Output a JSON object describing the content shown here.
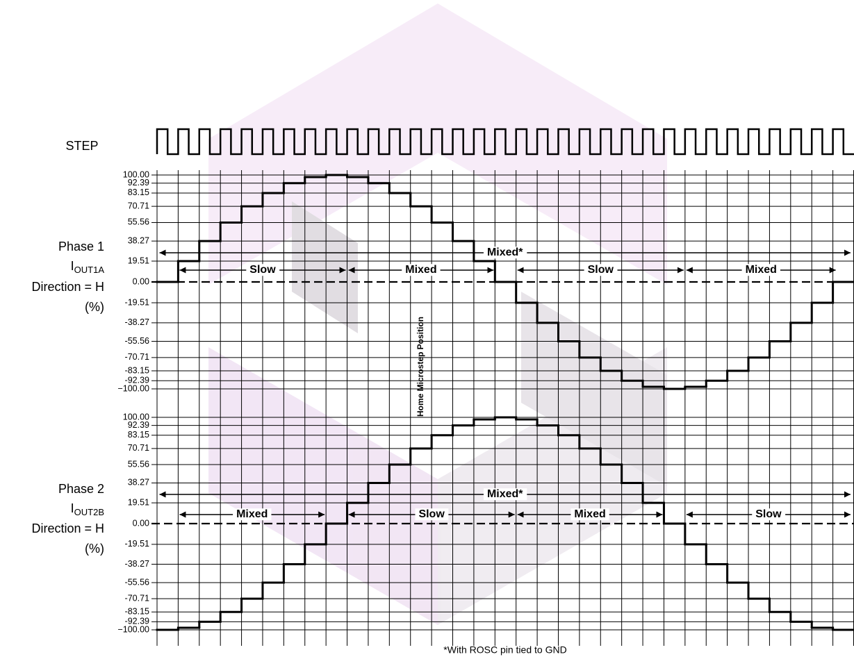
{
  "step_label": "STEP",
  "home_label": "Home Microstep Position",
  "footnote": "*With ROSC pin tied to GND",
  "panels": [
    {
      "phase": "Phase 1",
      "current": "I",
      "current_sub": "OUT1A",
      "direction": "Direction = H",
      "unit": "(%)",
      "ylim": [
        -100,
        100
      ],
      "yticks": [
        {
          "value": 100,
          "label": "100.00"
        },
        92.39,
        83.15,
        70.71,
        55.56,
        38.27,
        19.51,
        {
          "value": 0,
          "label": "0.00"
        },
        -19.51,
        -38.27,
        -55.56,
        -70.71,
        -83.15,
        -92.39,
        {
          "value": -100,
          "label": "−100.00"
        }
      ],
      "values": [
        0,
        19.51,
        38.27,
        55.56,
        70.71,
        83.15,
        92.39,
        98.08,
        100,
        98.08,
        92.39,
        83.15,
        70.71,
        55.56,
        38.27,
        19.51,
        0,
        -19.51,
        -38.27,
        -55.56,
        -70.71,
        -83.15,
        -92.39,
        -98.08,
        -100,
        -98.08,
        -92.39,
        -83.15,
        -70.71,
        -55.56,
        -38.27,
        -19.51,
        0
      ],
      "annotations": [
        "Mixed*",
        "Slow",
        "Mixed",
        "Slow",
        "Mixed"
      ]
    },
    {
      "phase": "Phase 2",
      "current": "I",
      "current_sub": "OUT2B",
      "direction": "Direction = H",
      "unit": "(%)",
      "ylim": [
        -100,
        100
      ],
      "yticks": [
        {
          "value": 100,
          "label": "100.00"
        },
        92.39,
        83.15,
        70.71,
        55.56,
        38.27,
        19.51,
        {
          "value": 0,
          "label": "0.00"
        },
        -19.51,
        -38.27,
        -55.56,
        -70.71,
        -83.15,
        -92.39,
        {
          "value": -100,
          "label": "−100.00"
        }
      ],
      "values": [
        -100,
        -98.08,
        -92.39,
        -83.15,
        -70.71,
        -55.56,
        -38.27,
        -19.51,
        0,
        19.51,
        38.27,
        55.56,
        70.71,
        83.15,
        92.39,
        98.08,
        100,
        98.08,
        92.39,
        83.15,
        70.71,
        55.56,
        38.27,
        19.51,
        0,
        -19.51,
        -38.27,
        -55.56,
        -70.71,
        -83.15,
        -92.39,
        -98.08,
        -100
      ],
      "annotations": [
        "Mixed*",
        "Mixed",
        "Slow",
        "Mixed",
        "Slow"
      ]
    }
  ]
}
